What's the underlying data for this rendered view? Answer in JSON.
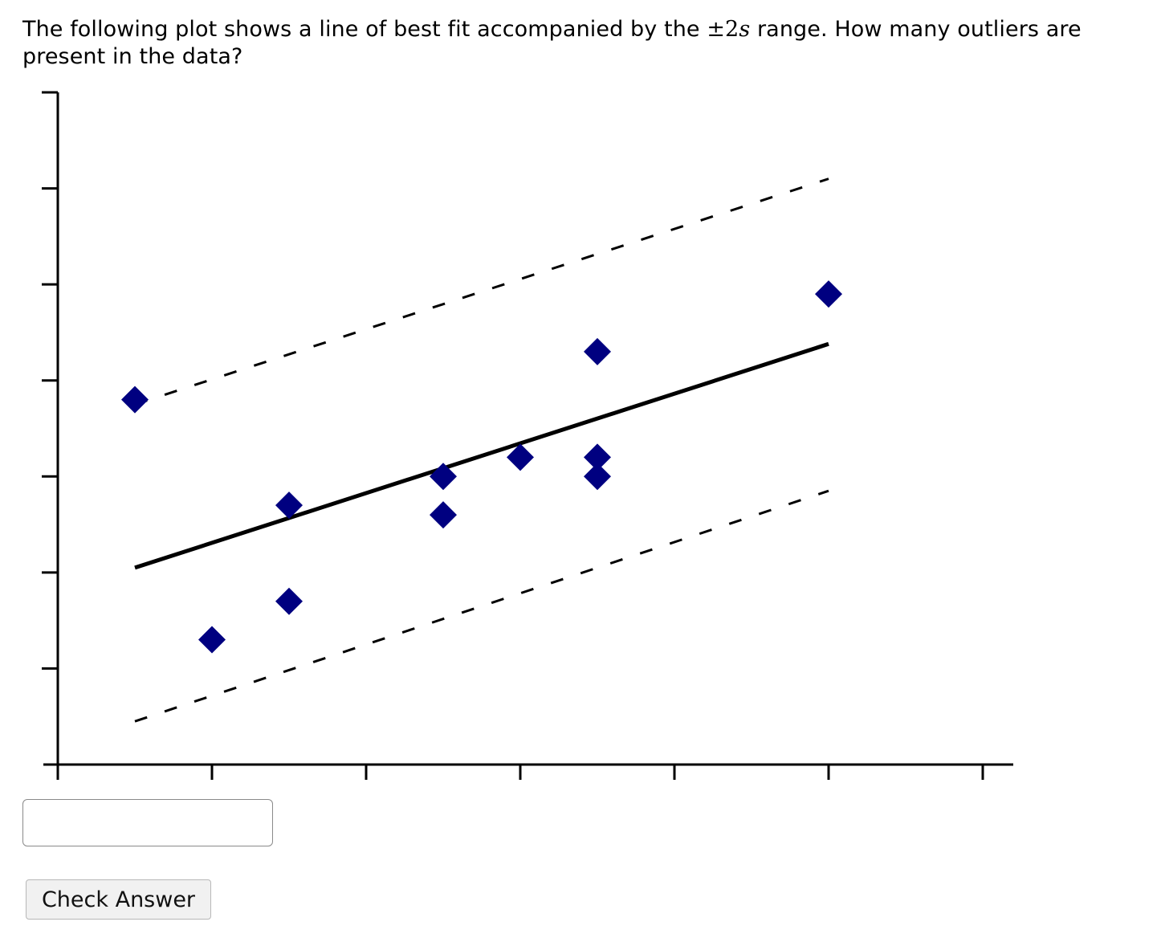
{
  "question": {
    "text_before": "The following plot shows a line of best fit accompanied by the ",
    "math_pm": "±2",
    "math_var": "s",
    "text_after": " range. How many outliers are present in the data?"
  },
  "answer": {
    "value": "",
    "placeholder": ""
  },
  "check_button_label": "Check Answer",
  "chart_data": {
    "type": "scatter",
    "title": "",
    "xlabel": "",
    "ylabel": "",
    "xlim": [
      0,
      6
    ],
    "ylim": [
      0,
      7
    ],
    "x_ticks": [
      0,
      1,
      2,
      3,
      4,
      5,
      6
    ],
    "y_ticks": [
      1,
      2,
      3,
      4,
      5,
      6,
      7
    ],
    "tick_labels_shown": false,
    "grid": false,
    "legend": "none",
    "marker": "diamond",
    "marker_color": "#000080",
    "points": [
      {
        "x": 0.5,
        "y": 3.8
      },
      {
        "x": 1.0,
        "y": 1.3
      },
      {
        "x": 1.5,
        "y": 2.7
      },
      {
        "x": 1.5,
        "y": 1.7
      },
      {
        "x": 2.5,
        "y": 3.0
      },
      {
        "x": 2.5,
        "y": 2.6
      },
      {
        "x": 3.0,
        "y": 3.2
      },
      {
        "x": 3.5,
        "y": 4.3
      },
      {
        "x": 3.5,
        "y": 3.2
      },
      {
        "x": 3.5,
        "y": 3.0
      },
      {
        "x": 5.0,
        "y": 4.9
      }
    ],
    "best_fit_line": {
      "x": [
        0.5,
        5.0
      ],
      "y": [
        2.05,
        4.38
      ],
      "style": "solid",
      "color": "#000000"
    },
    "upper_band": {
      "x": [
        0.5,
        5.0
      ],
      "y": [
        3.75,
        6.1
      ],
      "style": "dashed",
      "color": "#000000",
      "label": "+2s"
    },
    "lower_band": {
      "x": [
        0.5,
        5.0
      ],
      "y": [
        0.45,
        2.85
      ],
      "style": "dashed",
      "color": "#000000",
      "label": "-2s"
    }
  }
}
